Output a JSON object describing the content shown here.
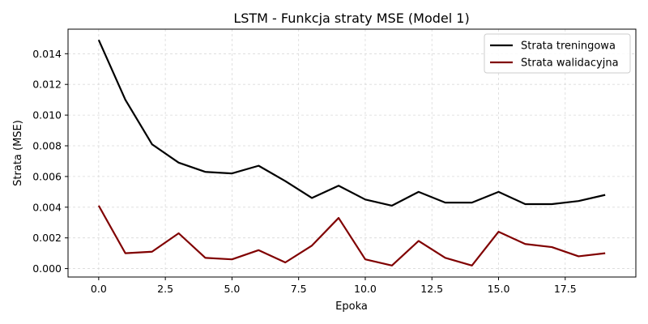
{
  "chart_data": {
    "type": "line",
    "title": "LSTM - Funkcja straty MSE (Model 1)",
    "xlabel": "Epoka",
    "ylabel": "Strata (MSE)",
    "xlim": [
      -1.15,
      20.15
    ],
    "ylim": [
      -0.00055,
      0.0156
    ],
    "x_ticks": [
      0.0,
      2.5,
      5.0,
      7.5,
      10.0,
      12.5,
      15.0,
      17.5
    ],
    "x_tick_labels": [
      "0.0",
      "2.5",
      "5.0",
      "7.5",
      "10.0",
      "12.5",
      "15.0",
      "17.5"
    ],
    "y_ticks": [
      0.0,
      0.002,
      0.004,
      0.006,
      0.008,
      0.01,
      0.012,
      0.014
    ],
    "y_tick_labels": [
      "0.000",
      "0.002",
      "0.004",
      "0.006",
      "0.008",
      "0.010",
      "0.012",
      "0.014"
    ],
    "grid": true,
    "legend_position": "top-right",
    "x": [
      0,
      1,
      2,
      3,
      4,
      5,
      6,
      7,
      8,
      9,
      10,
      11,
      12,
      13,
      14,
      15,
      16,
      17,
      18,
      19
    ],
    "series": [
      {
        "name": "Strata treningowa",
        "color": "#000000",
        "values": [
          0.0149,
          0.011,
          0.0081,
          0.0069,
          0.0063,
          0.0062,
          0.0067,
          0.0057,
          0.0046,
          0.0054,
          0.0045,
          0.0041,
          0.005,
          0.0043,
          0.0043,
          0.005,
          0.0042,
          0.0042,
          0.0044,
          0.0048
        ]
      },
      {
        "name": "Strata walidacyjna",
        "color": "#800000",
        "values": [
          0.0041,
          0.001,
          0.0011,
          0.0023,
          0.0007,
          0.0006,
          0.0012,
          0.0004,
          0.0015,
          0.0033,
          0.0006,
          0.0002,
          0.0018,
          0.0007,
          0.0002,
          0.0024,
          0.0016,
          0.0014,
          0.0008,
          0.001
        ]
      }
    ]
  }
}
